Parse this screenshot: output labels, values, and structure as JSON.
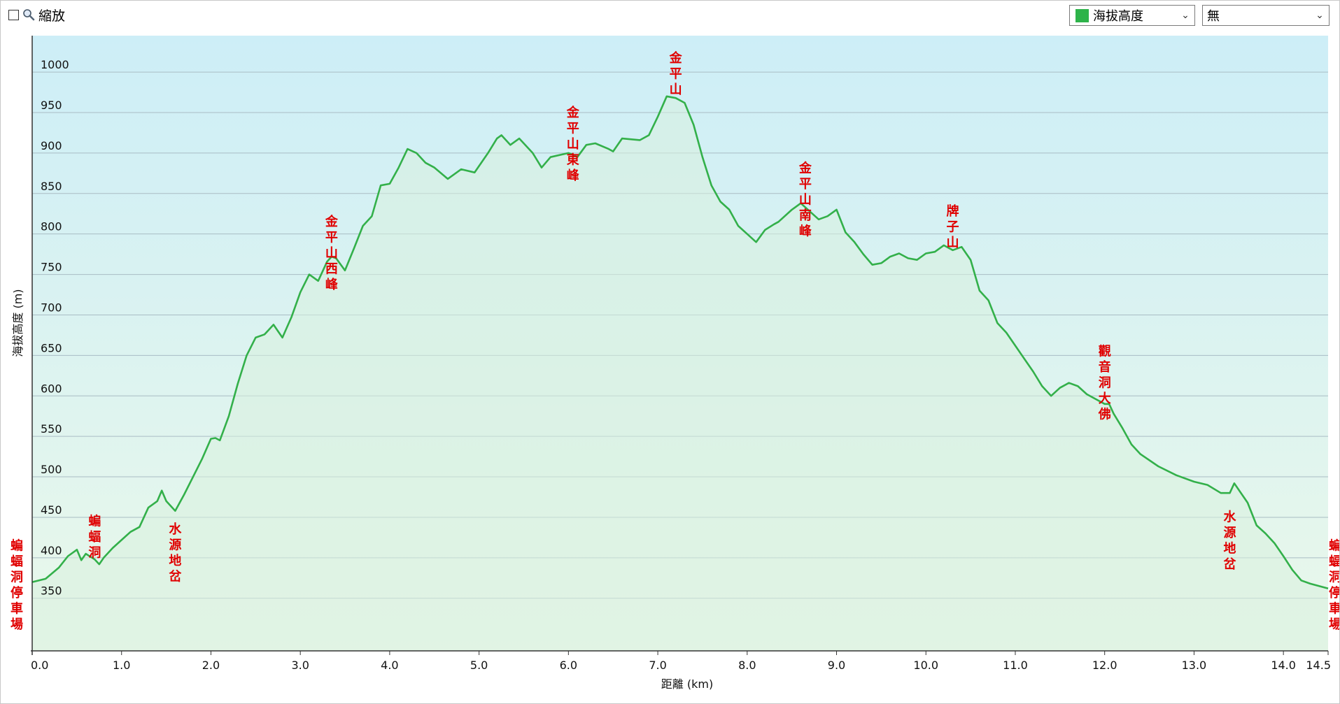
{
  "toolbar": {
    "zoom_label": "縮放",
    "series_select": {
      "label": "海拔高度",
      "swatch_color": "#2db34a"
    },
    "second_select": {
      "label": "無"
    }
  },
  "chart_data": {
    "type": "area",
    "xlabel": "距離  (km)",
    "ylabel": "海拔高度 (m)",
    "xlim": [
      0,
      14.5
    ],
    "ylim": [
      285,
      1045
    ],
    "x_ticks": [
      "0.0",
      "1.0",
      "2.0",
      "3.0",
      "4.0",
      "5.0",
      "6.0",
      "7.0",
      "8.0",
      "9.0",
      "10.0",
      "11.0",
      "12.0",
      "13.0",
      "14.0",
      "14.5"
    ],
    "x_tick_values": [
      0,
      1,
      2,
      3,
      4,
      5,
      6,
      7,
      8,
      9,
      10,
      11,
      12,
      13,
      14,
      14.5
    ],
    "y_ticks": [
      350,
      400,
      450,
      500,
      550,
      600,
      650,
      700,
      750,
      800,
      850,
      900,
      950,
      1000
    ],
    "grid": true,
    "line_color": "#33b04a",
    "fill_top_color": "#cdeef7",
    "fill_bottom_color": "#eaf8ea",
    "series": [
      {
        "name": "海拔高度",
        "x": [
          0,
          0.15,
          0.3,
          0.4,
          0.5,
          0.55,
          0.6,
          0.7,
          0.75,
          0.8,
          0.9,
          1.0,
          1.1,
          1.2,
          1.3,
          1.4,
          1.45,
          1.5,
          1.6,
          1.7,
          1.8,
          1.9,
          2.0,
          2.05,
          2.1,
          2.2,
          2.3,
          2.4,
          2.5,
          2.6,
          2.7,
          2.75,
          2.8,
          2.9,
          3.0,
          3.1,
          3.2,
          3.3,
          3.35,
          3.4,
          3.5,
          3.6,
          3.7,
          3.8,
          3.9,
          4.0,
          4.1,
          4.2,
          4.3,
          4.4,
          4.5,
          4.65,
          4.8,
          4.95,
          5.1,
          5.2,
          5.25,
          5.35,
          5.45,
          5.6,
          5.7,
          5.8,
          6.0,
          6.05,
          6.1,
          6.2,
          6.3,
          6.45,
          6.5,
          6.6,
          6.8,
          6.9,
          7.0,
          7.1,
          7.2,
          7.3,
          7.4,
          7.5,
          7.6,
          7.7,
          7.8,
          7.9,
          8.0,
          8.1,
          8.2,
          8.3,
          8.35,
          8.5,
          8.6,
          8.7,
          8.8,
          8.9,
          9.0,
          9.1,
          9.2,
          9.3,
          9.4,
          9.5,
          9.6,
          9.7,
          9.8,
          9.9,
          10.0,
          10.1,
          10.2,
          10.3,
          10.4,
          10.5,
          10.6,
          10.7,
          10.8,
          10.9,
          11.0,
          11.1,
          11.2,
          11.3,
          11.4,
          11.5,
          11.6,
          11.7,
          11.8,
          11.9,
          12.0,
          12.05,
          12.1,
          12.2,
          12.3,
          12.4,
          12.6,
          12.8,
          13.0,
          13.15,
          13.3,
          13.4,
          13.45,
          13.6,
          13.7,
          13.8,
          13.9,
          14.0,
          14.1,
          14.2,
          14.3,
          14.5
        ],
        "y": [
          370,
          374,
          388,
          402,
          410,
          397,
          405,
          398,
          392,
          400,
          412,
          422,
          432,
          438,
          462,
          470,
          483,
          470,
          458,
          478,
          500,
          522,
          547,
          548,
          545,
          575,
          615,
          650,
          672,
          676,
          688,
          680,
          672,
          697,
          728,
          750,
          742,
          766,
          772,
          770,
          755,
          782,
          810,
          822,
          860,
          862,
          882,
          905,
          900,
          888,
          882,
          868,
          880,
          876,
          900,
          918,
          922,
          910,
          918,
          900,
          882,
          895,
          900,
          898,
          895,
          910,
          912,
          905,
          902,
          918,
          916,
          922,
          945,
          970,
          968,
          962,
          935,
          895,
          860,
          840,
          830,
          810,
          800,
          790,
          805,
          812,
          815,
          830,
          838,
          828,
          818,
          822,
          830,
          802,
          790,
          775,
          762,
          764,
          772,
          776,
          770,
          768,
          776,
          778,
          786,
          780,
          784,
          768,
          730,
          718,
          690,
          678,
          662,
          646,
          630,
          612,
          600,
          610,
          616,
          612,
          602,
          596,
          590,
          590,
          578,
          560,
          540,
          528,
          513,
          502,
          494,
          490,
          480,
          480,
          492,
          468,
          440,
          430,
          418,
          402,
          385,
          372,
          368,
          362
        ]
      }
    ],
    "annotations": [
      {
        "text": "蝙蝠洞停車場",
        "x": 0.0,
        "y": 410
      },
      {
        "text": "蝙蝠洞",
        "x": 0.7,
        "y": 440
      },
      {
        "text": "水源地岔",
        "x": 1.6,
        "y": 430
      },
      {
        "text": "金平山西峰",
        "x": 3.35,
        "y": 810
      },
      {
        "text": "金平山東峰",
        "x": 6.05,
        "y": 945
      },
      {
        "text": "金平山",
        "x": 7.2,
        "y": 1012
      },
      {
        "text": "金平山南峰",
        "x": 8.65,
        "y": 876
      },
      {
        "text": "牌子山",
        "x": 10.3,
        "y": 823
      },
      {
        "text": "觀音洞大佛",
        "x": 12.0,
        "y": 650
      },
      {
        "text": "水源地岔",
        "x": 13.4,
        "y": 445
      },
      {
        "text": "蝙蝠洞停車場",
        "x": 14.5,
        "y": 410
      }
    ]
  }
}
